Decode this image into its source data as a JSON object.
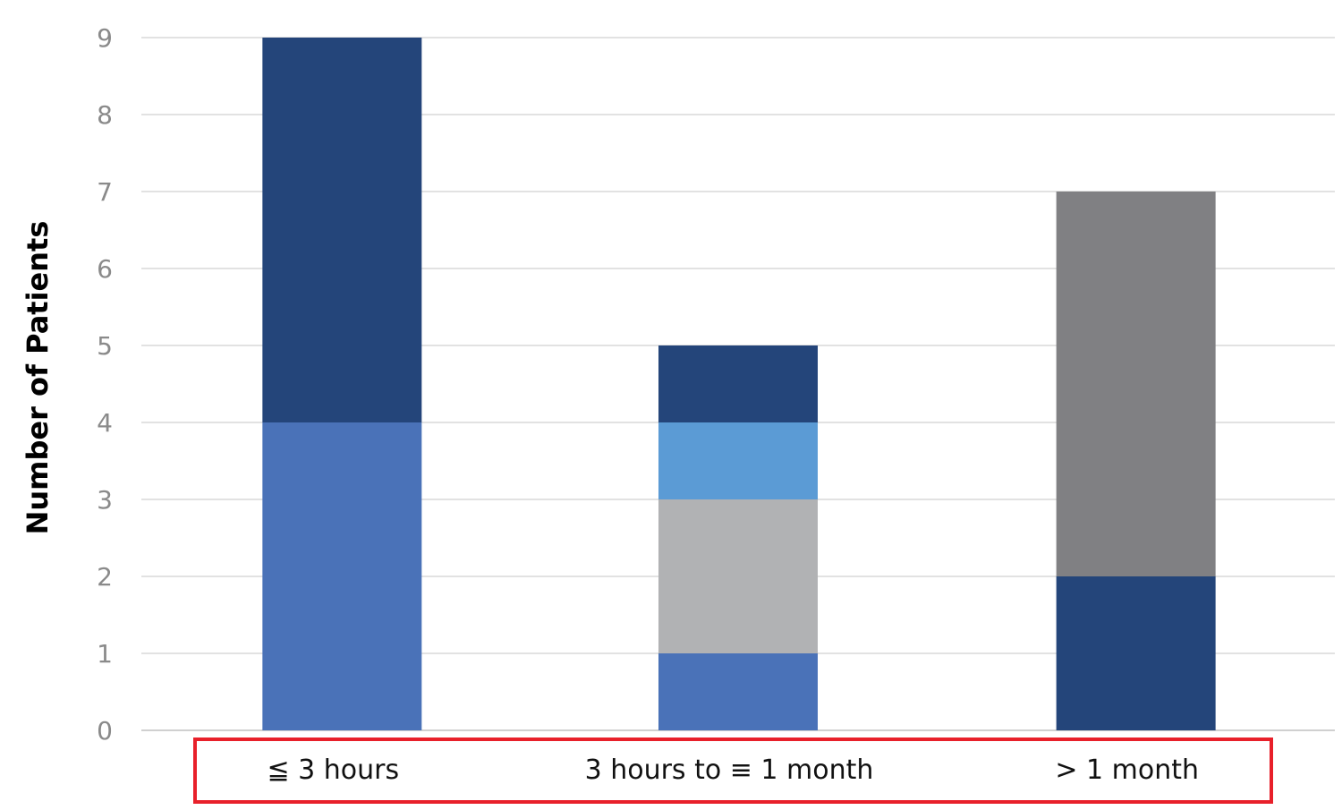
{
  "chart_data": {
    "type": "bar",
    "stacked": true,
    "categories": [
      "≦ 3 hours",
      "3 hours to ≡ 1 month",
      "> 1 month"
    ],
    "stacks": [
      [
        {
          "value": 4,
          "color": "#4A72B8"
        },
        {
          "value": 5,
          "color": "#24457A"
        }
      ],
      [
        {
          "value": 1,
          "color": "#4A72B8"
        },
        {
          "value": 2,
          "color": "#B1B2B4"
        },
        {
          "value": 1,
          "color": "#5B9BD5"
        },
        {
          "value": 1,
          "color": "#24457A"
        }
      ],
      [
        {
          "value": 2,
          "color": "#24457A"
        },
        {
          "value": 5,
          "color": "#808083"
        }
      ]
    ],
    "totals": [
      9,
      5,
      7
    ],
    "ylabel": "Number of Patients",
    "xlabel": "",
    "ylim": [
      0,
      9
    ],
    "yticks": [
      "0",
      "1",
      "2",
      "3",
      "4",
      "5",
      "6",
      "7",
      "8",
      "9"
    ],
    "grid": true,
    "highlight_box_color": "#E8202A"
  }
}
